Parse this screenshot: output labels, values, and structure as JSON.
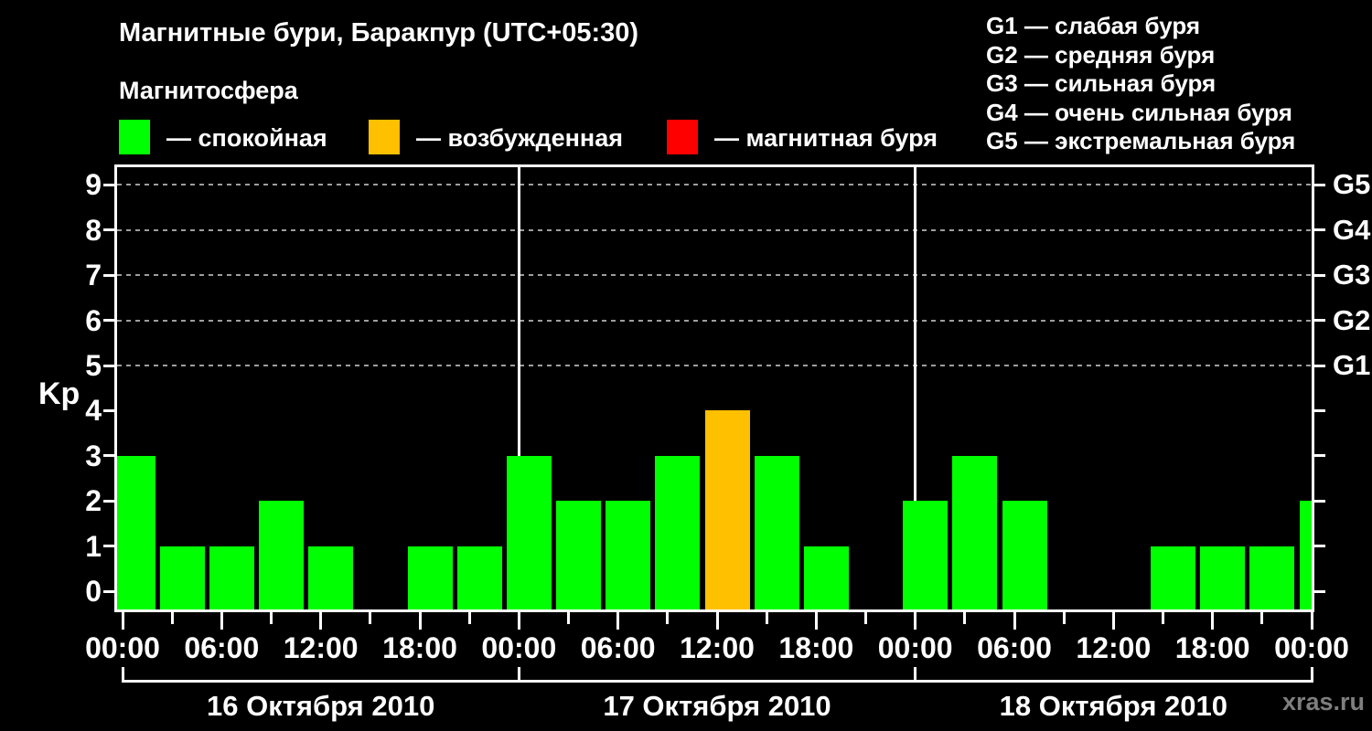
{
  "title": "Магнитные бури, Баракпур (UTC+05:30)",
  "subtitle": "Магнитосфера",
  "watermark": "xras.ru",
  "colors": {
    "background": "#000000",
    "axis": "#ffffff",
    "grid": "#9e9e9e",
    "quiet": "#00ff00",
    "excited": "#ffc000",
    "storm": "#ff0000",
    "watermark_color": "#7e7e7e"
  },
  "magnetosphere_legend": [
    {
      "label": "— спокойная",
      "color_key": "quiet"
    },
    {
      "label": "— возбужденная",
      "color_key": "excited"
    },
    {
      "label": "— магнитная буря",
      "color_key": "storm"
    }
  ],
  "storm_scale_legend": [
    "G1 — слабая буря",
    "G2 — средняя буря",
    "G3 — сильная буря",
    "G4 — очень сильная буря",
    "G5 — экстремальная буря"
  ],
  "chart_data": {
    "type": "bar",
    "ylabel": "Kp",
    "ylim": [
      0,
      9
    ],
    "y_tick_labels": [
      "0",
      "1",
      "2",
      "3",
      "4",
      "5",
      "6",
      "7",
      "8",
      "9"
    ],
    "right_axis_labels": [
      {
        "label": "G1",
        "kp": 5
      },
      {
        "label": "G2",
        "kp": 6
      },
      {
        "label": "G3",
        "kp": 7
      },
      {
        "label": "G4",
        "kp": 8
      },
      {
        "label": "G5",
        "kp": 9
      }
    ],
    "grid_dashed_at_kp": [
      5,
      6,
      7,
      8,
      9
    ],
    "hours_per_bar": 3,
    "x_tick_labels": [
      "00:00",
      "06:00",
      "12:00",
      "18:00",
      "00:00",
      "06:00",
      "12:00",
      "18:00",
      "00:00",
      "06:00",
      "12:00",
      "18:00",
      "00:00"
    ],
    "days": [
      {
        "date": "16 Октября 2010",
        "kp_values": [
          3,
          1,
          1,
          2,
          1,
          0,
          1,
          1
        ]
      },
      {
        "date": "17 Октября 2010",
        "kp_values": [
          3,
          2,
          2,
          3,
          4,
          3,
          1,
          0
        ]
      },
      {
        "date": "18 Октября 2010",
        "kp_values": [
          2,
          3,
          2,
          0,
          0,
          1,
          1,
          1
        ]
      }
    ],
    "next_day_partial_kp": 2,
    "color_rule": {
      "quiet_max_kp": 3,
      "excited_max_kp": 4
    }
  }
}
